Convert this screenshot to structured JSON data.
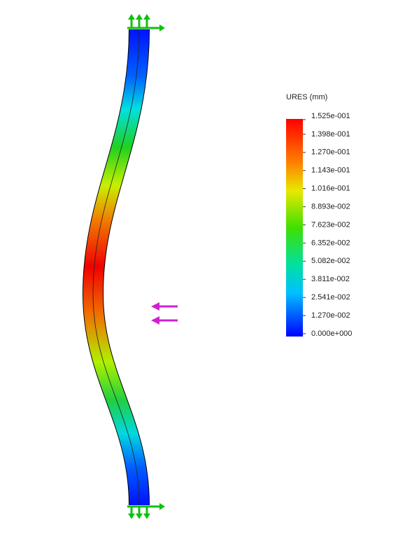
{
  "legend": {
    "title": "URES (mm)",
    "labels": [
      "1.525e-001",
      "1.398e-001",
      "1.270e-001",
      "1.143e-001",
      "1.016e-001",
      "8.893e-002",
      "7.623e-002",
      "6.352e-002",
      "5.082e-002",
      "3.811e-002",
      "2.541e-002",
      "1.270e-002",
      "0.000e+000"
    ]
  }
}
